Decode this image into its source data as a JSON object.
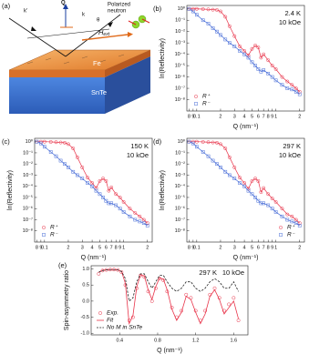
{
  "diagram": {
    "panel": "(a)",
    "labels": {
      "k_out": "k'",
      "q": "Q",
      "k_in": "k",
      "theta": "θ",
      "neutron": [
        "Polarized",
        "neutron"
      ],
      "field": "H",
      "field_sub": "ext",
      "fe": "Fe",
      "snte": "SnTe"
    }
  },
  "chart_data": [
    {
      "type": "scatter",
      "panel": "(b)",
      "temperature": "2.4 K",
      "field": "10 kOe",
      "xlabel": "Q (nm⁻¹)",
      "ylabel": "ln(Reflectivity)",
      "xscale": "log",
      "yscale": "log",
      "legend": "lower left",
      "xlim": [
        0.075,
        2.3
      ],
      "ylim": [
        1e-09,
        2
      ],
      "xticks": [
        {
          "value": 0.08,
          "label": "8"
        },
        {
          "value": 0.09,
          "label": "9"
        },
        0.1,
        {
          "value": 0.2,
          "label": "2"
        },
        {
          "value": 0.3,
          "label": "3"
        },
        {
          "value": 0.4,
          "label": "4"
        },
        {
          "value": 0.5,
          "label": "5"
        },
        {
          "value": 0.6,
          "label": "6"
        },
        {
          "value": 0.7,
          "label": "7"
        },
        {
          "value": 0.8,
          "label": "8"
        },
        {
          "value": 0.9,
          "label": "9"
        },
        1,
        {
          "value": 2,
          "label": "2"
        }
      ],
      "yticks": [
        {
          "value": 1,
          "label": "10⁰"
        },
        {
          "value": 0.1,
          "label": "10⁻¹"
        },
        {
          "value": 0.01,
          "label": "10⁻²"
        },
        {
          "value": 0.001,
          "label": "10⁻³"
        },
        {
          "value": 0.0001,
          "label": "10⁻⁴"
        },
        {
          "value": 1e-05,
          "label": "10⁻⁵"
        },
        {
          "value": 1e-06,
          "label": "10⁻⁶"
        },
        {
          "value": 1e-07,
          "label": "10⁻⁷"
        },
        {
          "value": 1e-08,
          "label": "10⁻⁸"
        }
      ],
      "x": [
        0.08,
        0.09,
        0.1,
        0.12,
        0.14,
        0.16,
        0.18,
        0.2,
        0.23,
        0.26,
        0.3,
        0.35,
        0.4,
        0.45,
        0.5,
        0.55,
        0.6,
        0.65,
        0.7,
        0.8,
        0.9,
        1.0,
        1.2,
        1.4,
        1.6,
        1.8,
        2.0
      ],
      "series": [
        {
          "name": "R⁺",
          "color": "#e8344a",
          "marker": "circle",
          "values": [
            1,
            1,
            1,
            0.95,
            0.9,
            0.85,
            0.8,
            0.6,
            0.2,
            0.03,
            0.004,
            0.0005,
            0.0002,
            8e-05,
            0.0003,
            0.0006,
            0.0004,
            5e-05,
            0.0001,
            3e-05,
            1e-05,
            5e-06,
            1e-06,
            4e-07,
            2e-07,
            1e-07,
            5e-08
          ]
        },
        {
          "name": "R⁻",
          "color": "#4a6fd8",
          "marker": "square",
          "values": [
            1,
            0.6,
            0.3,
            0.1,
            0.05,
            0.02,
            0.01,
            0.005,
            0.002,
            0.001,
            0.0005,
            0.0002,
            0.0001,
            5e-05,
            2e-05,
            1e-05,
            5e-06,
            3e-06,
            4e-06,
            2e-06,
            1e-06,
            5e-07,
            2e-07,
            1e-07,
            8e-08,
            5e-08,
            3e-08
          ]
        }
      ]
    },
    {
      "type": "scatter",
      "panel": "(c)",
      "temperature": "150 K",
      "field": "10 kOe",
      "xlabel": "Q (nm⁻¹)",
      "ylabel": "ln(Reflectivity)",
      "xscale": "log",
      "yscale": "log",
      "legend": "lower left",
      "xlim": [
        0.075,
        2.3
      ],
      "ylim": [
        1e-09,
        2
      ],
      "xticks": [
        {
          "value": 0.08,
          "label": "8"
        },
        {
          "value": 0.09,
          "label": "9"
        },
        0.1,
        {
          "value": 0.2,
          "label": "2"
        },
        {
          "value": 0.3,
          "label": "3"
        },
        {
          "value": 0.4,
          "label": "4"
        },
        {
          "value": 0.5,
          "label": "5"
        },
        {
          "value": 0.6,
          "label": "6"
        },
        {
          "value": 0.7,
          "label": "7"
        },
        {
          "value": 0.8,
          "label": "8"
        },
        {
          "value": 0.9,
          "label": "9"
        },
        1,
        {
          "value": 2,
          "label": "2"
        }
      ],
      "yticks": [
        {
          "value": 1,
          "label": "10⁰"
        },
        {
          "value": 0.1,
          "label": "10⁻¹"
        },
        {
          "value": 0.01,
          "label": "10⁻²"
        },
        {
          "value": 0.001,
          "label": "10⁻³"
        },
        {
          "value": 0.0001,
          "label": "10⁻⁴"
        },
        {
          "value": 1e-05,
          "label": "10⁻⁵"
        },
        {
          "value": 1e-06,
          "label": "10⁻⁶"
        },
        {
          "value": 1e-07,
          "label": "10⁻⁷"
        },
        {
          "value": 1e-08,
          "label": "10⁻⁸"
        }
      ],
      "x": [
        0.08,
        0.09,
        0.1,
        0.12,
        0.14,
        0.16,
        0.18,
        0.2,
        0.23,
        0.26,
        0.3,
        0.35,
        0.4,
        0.45,
        0.5,
        0.55,
        0.6,
        0.65,
        0.7,
        0.8,
        0.9,
        1.0,
        1.2,
        1.4,
        1.6,
        1.8,
        2.0
      ],
      "series": [
        {
          "name": "R⁺",
          "color": "#e8344a",
          "marker": "circle",
          "values": [
            1,
            1,
            1,
            0.95,
            0.9,
            0.85,
            0.8,
            0.6,
            0.25,
            0.04,
            0.005,
            0.0006,
            0.0002,
            7e-05,
            0.0003,
            0.0005,
            0.0003,
            4e-05,
            8e-05,
            2e-05,
            1e-05,
            4e-06,
            1e-06,
            4e-07,
            2e-07,
            1e-07,
            5e-08
          ]
        },
        {
          "name": "R⁻",
          "color": "#4a6fd8",
          "marker": "square",
          "values": [
            1,
            0.7,
            0.35,
            0.12,
            0.05,
            0.02,
            0.01,
            0.005,
            0.002,
            0.001,
            0.0005,
            0.0002,
            0.0001,
            4e-05,
            2e-05,
            1e-05,
            5e-06,
            3e-06,
            3e-06,
            2e-06,
            1e-06,
            5e-07,
            2e-07,
            1e-07,
            7e-08,
            5e-08,
            3e-08
          ]
        }
      ]
    },
    {
      "type": "scatter",
      "panel": "(d)",
      "temperature": "297 K",
      "field": "10 kOe",
      "xlabel": "Q (nm⁻¹)",
      "ylabel": "ln(Reflectivity)",
      "xscale": "log",
      "yscale": "log",
      "legend": "lower right",
      "xlim": [
        0.075,
        2.3
      ],
      "ylim": [
        1e-09,
        2
      ],
      "xticks": [
        {
          "value": 0.08,
          "label": "8"
        },
        {
          "value": 0.09,
          "label": "9"
        },
        0.1,
        {
          "value": 0.2,
          "label": "2"
        },
        {
          "value": 0.3,
          "label": "3"
        },
        {
          "value": 0.4,
          "label": "4"
        },
        {
          "value": 0.5,
          "label": "5"
        },
        {
          "value": 0.6,
          "label": "6"
        },
        {
          "value": 0.7,
          "label": "7"
        },
        {
          "value": 0.8,
          "label": "8"
        },
        {
          "value": 0.9,
          "label": "9"
        },
        1,
        {
          "value": 2,
          "label": "2"
        }
      ],
      "yticks": [
        {
          "value": 1,
          "label": "10⁰"
        },
        {
          "value": 0.1,
          "label": "10⁻¹"
        },
        {
          "value": 0.01,
          "label": "10⁻²"
        },
        {
          "value": 0.001,
          "label": "10⁻³"
        },
        {
          "value": 0.0001,
          "label": "10⁻⁴"
        },
        {
          "value": 1e-05,
          "label": "10⁻⁵"
        },
        {
          "value": 1e-06,
          "label": "10⁻⁶"
        },
        {
          "value": 1e-07,
          "label": "10⁻⁷"
        },
        {
          "value": 1e-08,
          "label": "10⁻⁸"
        }
      ],
      "x": [
        0.08,
        0.09,
        0.1,
        0.12,
        0.14,
        0.16,
        0.18,
        0.2,
        0.23,
        0.26,
        0.3,
        0.35,
        0.4,
        0.45,
        0.5,
        0.55,
        0.6,
        0.65,
        0.7,
        0.8,
        0.9,
        1.0,
        1.2,
        1.4,
        1.6,
        1.8,
        2.0
      ],
      "series": [
        {
          "name": "R⁺",
          "color": "#e8344a",
          "marker": "circle",
          "values": [
            1,
            1,
            1,
            0.95,
            0.9,
            0.85,
            0.8,
            0.6,
            0.25,
            0.04,
            0.005,
            0.0006,
            0.0002,
            6e-05,
            0.0003,
            0.0005,
            0.0003,
            3e-05,
            7e-05,
            2e-05,
            8e-06,
            4e-06,
            1e-06,
            3e-07,
            2e-07,
            1e-07,
            5e-08
          ]
        },
        {
          "name": "R⁻",
          "color": "#4a6fd8",
          "marker": "square",
          "values": [
            1,
            0.7,
            0.35,
            0.12,
            0.05,
            0.02,
            0.01,
            0.005,
            0.002,
            0.001,
            0.0005,
            0.0002,
            0.0001,
            4e-05,
            2e-05,
            1e-05,
            5e-06,
            3e-06,
            3e-06,
            2e-06,
            1e-06,
            5e-07,
            2e-07,
            1e-07,
            7e-08,
            5e-08,
            3e-08
          ]
        }
      ]
    },
    {
      "type": "line",
      "panel": "(e)",
      "temperature": "297 K",
      "field": "10 kOe",
      "xlabel": "Q (nm⁻¹)",
      "ylabel": "Spin-asymmetry ratio",
      "legend": "lower left",
      "xlim": [
        0.1,
        1.75
      ],
      "ylim": [
        -1.05,
        1.1
      ],
      "xticks": [
        0.4,
        0.8,
        1.2,
        1.6
      ],
      "yticks": [
        {
          "value": 1,
          "label": "1.0"
        },
        0.5,
        {
          "value": 0,
          "label": "0.0"
        },
        -0.5,
        {
          "value": -1,
          "label": "-1.0"
        }
      ],
      "x": [
        0.18,
        0.22,
        0.26,
        0.3,
        0.34,
        0.38,
        0.42,
        0.46,
        0.5,
        0.54,
        0.58,
        0.62,
        0.66,
        0.7,
        0.74,
        0.78,
        0.82,
        0.86,
        0.9,
        0.95,
        1.0,
        1.05,
        1.1,
        1.15,
        1.2,
        1.25,
        1.3,
        1.35,
        1.4,
        1.45,
        1.5,
        1.55,
        1.6,
        1.65
      ],
      "series": [
        {
          "name": "Exp.",
          "color": "#e8344a",
          "style": "markers",
          "values": [
            0.85,
            0.95,
            0.97,
            0.98,
            0.98,
            0.97,
            0.9,
            0.5,
            -0.6,
            -0.5,
            0.4,
            0.8,
            0.75,
            0.3,
            0.0,
            0.4,
            0.7,
            0.65,
            0.3,
            -0.2,
            -0.5,
            -0.3,
            0.2,
            0.1,
            -0.3,
            -0.6,
            -0.3,
            0.2,
            0.4,
            0.1,
            -0.3,
            -0.1,
            0.1,
            -0.6
          ]
        },
        {
          "name": "Fit",
          "color": "#e8344a",
          "style": "solid",
          "values": [
            0.9,
            0.96,
            0.97,
            0.98,
            0.98,
            0.97,
            0.92,
            0.55,
            -0.7,
            -0.45,
            0.45,
            0.82,
            0.78,
            0.35,
            0.05,
            0.45,
            0.72,
            0.68,
            0.35,
            -0.25,
            -0.6,
            -0.35,
            0.15,
            0.05,
            -0.35,
            -0.7,
            -0.4,
            0.15,
            0.35,
            0.05,
            -0.4,
            -0.2,
            0.0,
            -0.55
          ]
        },
        {
          "name": "No M in SnTe",
          "color": "#222222",
          "style": "dashed",
          "values": [
            0.9,
            0.95,
            0.97,
            0.98,
            0.98,
            0.97,
            0.92,
            0.7,
            0.0,
            0.1,
            0.6,
            0.85,
            0.85,
            0.6,
            0.4,
            0.6,
            0.8,
            0.8,
            0.6,
            0.4,
            0.3,
            0.4,
            0.6,
            0.6,
            0.4,
            0.3,
            0.4,
            0.6,
            0.7,
            0.6,
            0.4,
            0.4,
            0.6,
            0.3
          ]
        }
      ]
    }
  ]
}
